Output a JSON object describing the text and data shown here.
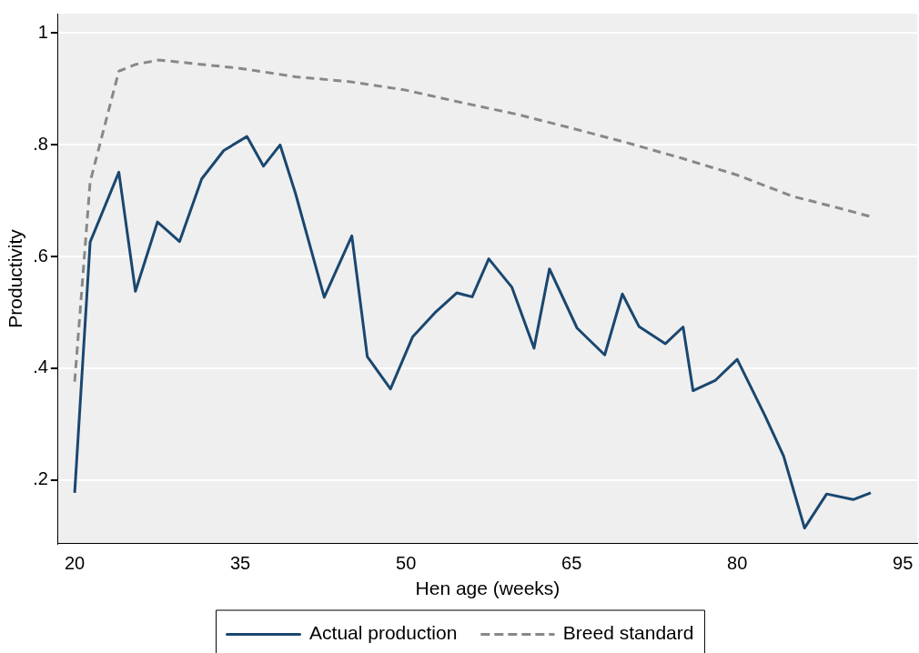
{
  "chart_data": {
    "type": "line",
    "xlabel": "Hen age (weeks)",
    "ylabel": "Productivity",
    "xlim": [
      18.5,
      96.3
    ],
    "xticks": [
      20,
      35,
      50,
      65,
      80,
      95
    ],
    "ylim": [
      0.086,
      1.035
    ],
    "yticks": [
      {
        "value": 0.2,
        "label": ".2"
      },
      {
        "value": 0.4,
        "label": ".4"
      },
      {
        "value": 0.6,
        "label": ".6"
      },
      {
        "value": 0.8,
        "label": ".8"
      },
      1
    ],
    "grid": "y",
    "legend": "bottom",
    "marker": "none",
    "series": [
      {
        "name": "Actual production",
        "color": "#1a476f",
        "line_style": "solid",
        "x": [
          20,
          21.4,
          24,
          25.5,
          27.5,
          29.5,
          31.5,
          33.5,
          35.6,
          37.1,
          38.6,
          40,
          42.6,
          45.1,
          46.5,
          48.6,
          50.6,
          52.6,
          54.6,
          56,
          57.5,
          59.6,
          61.6,
          63,
          65.5,
          68,
          69.6,
          71.1,
          73.5,
          75.1,
          76,
          78,
          80,
          82.5,
          84.2,
          86.1,
          88.1,
          90.5,
          92.1
        ],
        "values": [
          0.177,
          0.626,
          0.751,
          0.538,
          0.662,
          0.627,
          0.739,
          0.79,
          0.815,
          0.762,
          0.8,
          0.713,
          0.527,
          0.637,
          0.421,
          0.363,
          0.456,
          0.499,
          0.535,
          0.528,
          0.596,
          0.545,
          0.436,
          0.578,
          0.472,
          0.424,
          0.533,
          0.475,
          0.444,
          0.474,
          0.36,
          0.378,
          0.416,
          0.316,
          0.243,
          0.114,
          0.175,
          0.165,
          0.177
        ]
      },
      {
        "name": "Breed standard",
        "color": "#888888",
        "line_style": "dashed",
        "x": [
          20,
          21.4,
          24,
          25.5,
          27.6,
          35,
          40,
          45,
          50,
          55,
          60,
          65,
          70,
          75,
          80,
          85,
          89,
          92
        ],
        "values": [
          0.376,
          0.734,
          0.932,
          0.944,
          0.952,
          0.937,
          0.922,
          0.913,
          0.898,
          0.876,
          0.855,
          0.83,
          0.804,
          0.776,
          0.746,
          0.708,
          0.688,
          0.672
        ]
      }
    ]
  }
}
